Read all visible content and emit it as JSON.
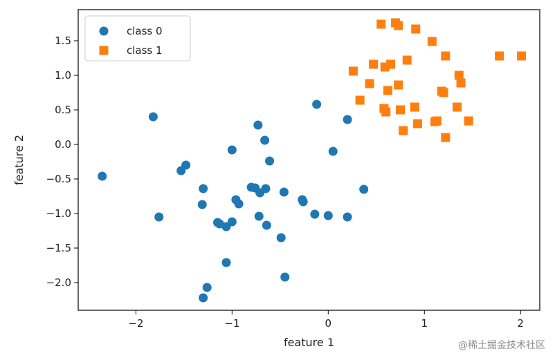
{
  "chart_data": {
    "type": "scatter",
    "xlabel": "feature 1",
    "ylabel": "feature 2",
    "xlim": [
      -2.6,
      2.2
    ],
    "ylim": [
      -2.4,
      1.95
    ],
    "xticks": [
      -2,
      -1,
      0,
      1,
      2
    ],
    "yticks": [
      -2.0,
      -1.5,
      -1.0,
      -0.5,
      0.0,
      0.5,
      1.0,
      1.5
    ],
    "xtick_labels": [
      "−2",
      "−1",
      "0",
      "1",
      "2"
    ],
    "ytick_labels": [
      "−2.0",
      "−1.5",
      "−1.0",
      "−0.5",
      "0.0",
      "0.5",
      "1.0",
      "1.5"
    ],
    "grid": false,
    "legend_position": "top-left",
    "series": [
      {
        "name": "class 0",
        "marker": "circle",
        "color": "#1f77b4",
        "points": [
          [
            -2.35,
            -0.46
          ],
          [
            -1.82,
            0.4
          ],
          [
            -1.76,
            -1.05
          ],
          [
            -1.53,
            -0.38
          ],
          [
            -1.48,
            -0.3
          ],
          [
            -1.3,
            -0.64
          ],
          [
            -1.31,
            -0.87
          ],
          [
            -1.3,
            -2.22
          ],
          [
            -1.26,
            -2.07
          ],
          [
            -1.15,
            -1.13
          ],
          [
            -1.13,
            -1.15
          ],
          [
            -1.06,
            -1.19
          ],
          [
            -1.06,
            -1.71
          ],
          [
            -1.0,
            -1.12
          ],
          [
            -1.0,
            -0.08
          ],
          [
            -0.96,
            -0.8
          ],
          [
            -0.93,
            -0.86
          ],
          [
            -0.8,
            -0.62
          ],
          [
            -0.76,
            -0.63
          ],
          [
            -0.73,
            0.28
          ],
          [
            -0.72,
            -1.04
          ],
          [
            -0.71,
            -0.7
          ],
          [
            -0.66,
            0.06
          ],
          [
            -0.65,
            -0.64
          ],
          [
            -0.64,
            -1.17
          ],
          [
            -0.61,
            -0.24
          ],
          [
            -0.49,
            -1.35
          ],
          [
            -0.46,
            -0.69
          ],
          [
            -0.45,
            -1.92
          ],
          [
            -0.27,
            -0.8
          ],
          [
            -0.26,
            -0.83
          ],
          [
            -0.14,
            -1.01
          ],
          [
            -0.12,
            0.58
          ],
          [
            0.0,
            -1.03
          ],
          [
            0.05,
            -0.1
          ],
          [
            0.2,
            0.36
          ],
          [
            0.2,
            -1.05
          ],
          [
            0.37,
            -0.65
          ]
        ]
      },
      {
        "name": "class 1",
        "marker": "square",
        "color": "#ff7f0e",
        "points": [
          [
            0.26,
            1.06
          ],
          [
            0.33,
            0.64
          ],
          [
            0.43,
            0.88
          ],
          [
            0.47,
            1.16
          ],
          [
            0.55,
            1.74
          ],
          [
            0.58,
            0.52
          ],
          [
            0.59,
            1.12
          ],
          [
            0.6,
            0.47
          ],
          [
            0.62,
            0.78
          ],
          [
            0.65,
            1.16
          ],
          [
            0.7,
            1.76
          ],
          [
            0.73,
            1.72
          ],
          [
            0.73,
            0.86
          ],
          [
            0.75,
            0.5
          ],
          [
            0.78,
            0.2
          ],
          [
            0.82,
            1.22
          ],
          [
            0.9,
            0.54
          ],
          [
            0.91,
            1.67
          ],
          [
            0.93,
            0.3
          ],
          [
            1.08,
            1.49
          ],
          [
            1.11,
            0.33
          ],
          [
            1.13,
            0.34
          ],
          [
            1.18,
            0.77
          ],
          [
            1.2,
            0.75
          ],
          [
            1.22,
            1.28
          ],
          [
            1.22,
            0.1
          ],
          [
            1.34,
            0.54
          ],
          [
            1.36,
            1.0
          ],
          [
            1.38,
            0.89
          ],
          [
            1.46,
            0.34
          ],
          [
            1.78,
            1.28
          ],
          [
            2.01,
            1.28
          ]
        ]
      }
    ]
  },
  "watermark": "@稀土掘金技术社区"
}
